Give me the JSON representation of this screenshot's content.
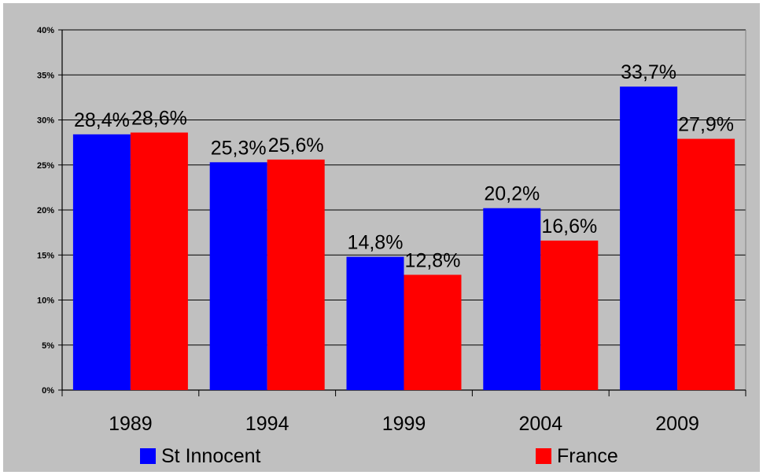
{
  "chart_data": {
    "type": "bar",
    "categories": [
      "1989",
      "1994",
      "1999",
      "2004",
      "2009"
    ],
    "series": [
      {
        "name": "St Innocent",
        "color": "#0000ff",
        "values": [
          28.4,
          25.3,
          14.8,
          20.2,
          33.7
        ],
        "labels": [
          "28,4%",
          "25,3%",
          "14,8%",
          "20,2%",
          "33,7%"
        ]
      },
      {
        "name": "France",
        "color": "#ff0000",
        "values": [
          28.6,
          25.6,
          12.8,
          16.6,
          27.9
        ],
        "labels": [
          "28,6%",
          "25,6%",
          "12,8%",
          "16,6%",
          "27,9%"
        ]
      }
    ],
    "ylim": [
      0,
      40
    ],
    "yticks": [
      0,
      5,
      10,
      15,
      20,
      25,
      30,
      35,
      40
    ],
    "ytick_labels": [
      "0%",
      "5%",
      "10%",
      "15%",
      "20%",
      "25%",
      "30%",
      "35%",
      "40%"
    ],
    "grid": true,
    "legend": "bottom",
    "title": "",
    "xlabel": "",
    "ylabel": ""
  }
}
